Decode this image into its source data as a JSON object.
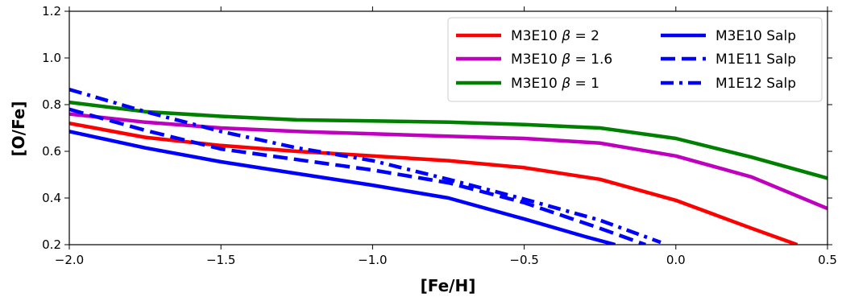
{
  "chart_data": {
    "type": "line",
    "xlabel": "[Fe/H]",
    "ylabel": "[O/Fe]",
    "xlim": [
      -2.0,
      0.5
    ],
    "ylim": [
      0.2,
      1.2
    ],
    "xticks": [
      -2.0,
      -1.5,
      -1.0,
      -0.5,
      0.0,
      0.5
    ],
    "xtick_labels": [
      "−2.0",
      "−1.5",
      "−1.0",
      "−0.5",
      "0.0",
      "0.5"
    ],
    "yticks": [
      0.2,
      0.4,
      0.6,
      0.8,
      1.0,
      1.2
    ],
    "ytick_labels": [
      "0.2",
      "0.4",
      "0.6",
      "0.8",
      "1.0",
      "1.2"
    ],
    "grid": false,
    "legend_placement": "top-right",
    "legend_columns": 2,
    "series": [
      {
        "name": "M3E10 β = 2",
        "legend_prefix": "M3E10 ",
        "legend_beta": "β",
        "legend_suffix": " = 2",
        "color": "#ff0000",
        "style": "solid",
        "x": [
          -2.0,
          -1.75,
          -1.5,
          -1.25,
          -1.0,
          -0.75,
          -0.5,
          -0.25,
          0.0,
          0.25,
          0.4
        ],
        "y": [
          0.72,
          0.66,
          0.625,
          0.6,
          0.58,
          0.56,
          0.53,
          0.48,
          0.39,
          0.27,
          0.2
        ]
      },
      {
        "name": "M3E10 β = 1.6",
        "legend_prefix": "M3E10 ",
        "legend_beta": "β",
        "legend_suffix": " = 1.6",
        "color": "#bf00bf",
        "style": "solid",
        "x": [
          -2.0,
          -1.75,
          -1.5,
          -1.25,
          -1.0,
          -0.75,
          -0.5,
          -0.25,
          0.0,
          0.25,
          0.5
        ],
        "y": [
          0.76,
          0.725,
          0.7,
          0.685,
          0.675,
          0.665,
          0.655,
          0.635,
          0.58,
          0.49,
          0.355
        ]
      },
      {
        "name": "M3E10 β = 1",
        "legend_prefix": "M3E10 ",
        "legend_beta": "β",
        "legend_suffix": " = 1",
        "color": "#008000",
        "style": "solid",
        "x": [
          -2.0,
          -1.75,
          -1.5,
          -1.25,
          -1.0,
          -0.75,
          -0.5,
          -0.25,
          0.0,
          0.25,
          0.5
        ],
        "y": [
          0.81,
          0.77,
          0.75,
          0.735,
          0.73,
          0.725,
          0.715,
          0.7,
          0.655,
          0.575,
          0.485
        ]
      },
      {
        "name": "M3E10 Salp",
        "color": "#0000ff",
        "style": "solid",
        "x": [
          -2.0,
          -1.75,
          -1.5,
          -1.25,
          -1.0,
          -0.75,
          -0.5,
          -0.3,
          -0.2
        ],
        "y": [
          0.685,
          0.615,
          0.555,
          0.505,
          0.455,
          0.4,
          0.31,
          0.235,
          0.2
        ]
      },
      {
        "name": "M1E11 Salp",
        "color": "#0000ff",
        "style": "dashed",
        "x": [
          -2.0,
          -1.75,
          -1.5,
          -1.25,
          -1.0,
          -0.75,
          -0.5,
          -0.25,
          -0.1
        ],
        "y": [
          0.78,
          0.69,
          0.61,
          0.565,
          0.52,
          0.465,
          0.38,
          0.27,
          0.2
        ]
      },
      {
        "name": "M1E12 Salp",
        "color": "#0000ff",
        "style": "dashdot",
        "x": [
          -2.0,
          -1.75,
          -1.5,
          -1.25,
          -1.0,
          -0.75,
          -0.5,
          -0.25,
          -0.05
        ],
        "y": [
          0.865,
          0.77,
          0.685,
          0.615,
          0.56,
          0.48,
          0.395,
          0.305,
          0.21
        ]
      }
    ]
  }
}
